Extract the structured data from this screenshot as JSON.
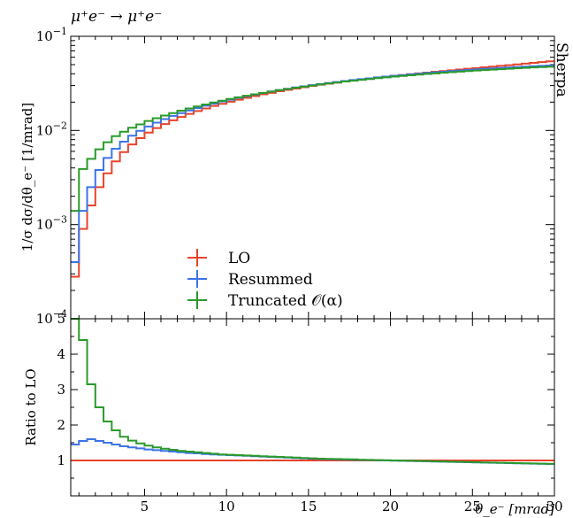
{
  "chart_data": [
    {
      "panel": "main",
      "type": "line",
      "drawstyle": "steps",
      "title": "μ⁺e⁻ → μ⁺e⁻",
      "watermark": "Sherpa",
      "ylabel": "1/σ dσ/dθ_e⁻ [1/mrad]",
      "xlabel": "",
      "xlim": [
        0.5,
        30
      ],
      "ylim": [
        0.0001,
        0.1
      ],
      "yscale": "log",
      "x_ticks": [
        5,
        10,
        15,
        20,
        25,
        30
      ],
      "y_ticks": [
        {
          "value": 0.0001,
          "base": "10",
          "exp": "−4"
        },
        {
          "value": 0.001,
          "base": "10",
          "exp": "−3"
        },
        {
          "value": 0.01,
          "base": "10",
          "exp": "−2"
        },
        {
          "value": 0.1,
          "base": "10",
          "exp": "−1"
        }
      ],
      "bin_edges": [
        0.5,
        1.0,
        1.5,
        2.0,
        2.5,
        3.0,
        3.5,
        4.0,
        4.5,
        5.0,
        5.5,
        6.0,
        6.5,
        7.0,
        7.5,
        8.0,
        8.5,
        9.0,
        9.5,
        10.0,
        10.5,
        11.0,
        11.5,
        12.0,
        12.5,
        13.0,
        13.5,
        14.0,
        14.5,
        15.0,
        15.5,
        16.0,
        16.5,
        17.0,
        17.5,
        18.0,
        18.5,
        19.0,
        19.5,
        20.0,
        20.5,
        21.0,
        21.5,
        22.0,
        22.5,
        23.0,
        23.5,
        24.0,
        24.5,
        25.0,
        25.5,
        26.0,
        26.5,
        27.0,
        27.5,
        28.0,
        28.5,
        29.0,
        29.5,
        30.0
      ],
      "legend": {
        "position": "lower-center"
      },
      "series": [
        {
          "name": "LO",
          "color": "#e8432b",
          "values": [
            0.00028,
            0.0009,
            0.0016,
            0.0025,
            0.0035,
            0.0047,
            0.0059,
            0.0071,
            0.0083,
            0.0095,
            0.0106,
            0.0117,
            0.0128,
            0.0139,
            0.015,
            0.0161,
            0.0171,
            0.0182,
            0.0192,
            0.0202,
            0.0212,
            0.0222,
            0.0232,
            0.0242,
            0.0251,
            0.0261,
            0.027,
            0.0279,
            0.0288,
            0.0297,
            0.0306,
            0.0314,
            0.0323,
            0.0331,
            0.034,
            0.0348,
            0.0356,
            0.0364,
            0.0372,
            0.038,
            0.0388,
            0.0396,
            0.0404,
            0.0412,
            0.042,
            0.0428,
            0.0436,
            0.0444,
            0.0452,
            0.046,
            0.0468,
            0.0476,
            0.0485,
            0.0494,
            0.0503,
            0.0512,
            0.0522,
            0.0532,
            0.0542
          ]
        },
        {
          "name": "Resummed",
          "color": "#3d74e6",
          "values": [
            0.0004,
            0.0014,
            0.0025,
            0.0038,
            0.0051,
            0.0064,
            0.0076,
            0.0088,
            0.0099,
            0.011,
            0.0121,
            0.0132,
            0.0143,
            0.0153,
            0.0163,
            0.0173,
            0.0183,
            0.0193,
            0.0203,
            0.0212,
            0.0222,
            0.0231,
            0.0241,
            0.025,
            0.0259,
            0.0268,
            0.0277,
            0.0286,
            0.0294,
            0.0303,
            0.0311,
            0.0319,
            0.0327,
            0.0335,
            0.0343,
            0.0351,
            0.0358,
            0.0366,
            0.0373,
            0.038,
            0.0387,
            0.0394,
            0.0401,
            0.0408,
            0.0414,
            0.0421,
            0.0427,
            0.0433,
            0.0439,
            0.0445,
            0.0451,
            0.0456,
            0.0461,
            0.0466,
            0.0471,
            0.0476,
            0.0481,
            0.0486,
            0.049
          ]
        },
        {
          "name": "Truncated 𝒪(α)",
          "color": "#2a9a2a",
          "values": [
            0.0014,
            0.0039,
            0.005,
            0.0063,
            0.0075,
            0.0087,
            0.0097,
            0.0107,
            0.0116,
            0.0126,
            0.0135,
            0.0144,
            0.0153,
            0.0162,
            0.0171,
            0.018,
            0.0189,
            0.0198,
            0.0207,
            0.0216,
            0.0225,
            0.0234,
            0.0242,
            0.0251,
            0.0259,
            0.0268,
            0.0276,
            0.0284,
            0.0292,
            0.03,
            0.0308,
            0.0316,
            0.0323,
            0.0331,
            0.0338,
            0.0345,
            0.0352,
            0.0359,
            0.0366,
            0.0373,
            0.0379,
            0.0386,
            0.0392,
            0.0398,
            0.0404,
            0.041,
            0.0416,
            0.0422,
            0.0427,
            0.0433,
            0.0438,
            0.0443,
            0.0448,
            0.0453,
            0.0458,
            0.0462,
            0.0467,
            0.0471,
            0.0475
          ]
        }
      ]
    },
    {
      "panel": "ratio",
      "type": "line",
      "drawstyle": "steps",
      "ylabel": "Ratio to LO",
      "xlabel": "θ_e⁻ [mrad]",
      "xlim": [
        0.5,
        30
      ],
      "ylim": [
        0,
        5
      ],
      "x_ticks": [
        5,
        10,
        15,
        20,
        25,
        30
      ],
      "y_ticks": [
        1,
        2,
        3,
        4,
        5
      ],
      "series": [
        {
          "name": "LO",
          "color": "#e8432b",
          "values": [
            1.0,
            1.0,
            1.0,
            1.0,
            1.0,
            1.0,
            1.0,
            1.0,
            1.0,
            1.0,
            1.0,
            1.0,
            1.0,
            1.0,
            1.0,
            1.0,
            1.0,
            1.0,
            1.0,
            1.0,
            1.0,
            1.0,
            1.0,
            1.0,
            1.0,
            1.0,
            1.0,
            1.0,
            1.0,
            1.0,
            1.0,
            1.0,
            1.0,
            1.0,
            1.0,
            1.0,
            1.0,
            1.0,
            1.0,
            1.0,
            1.0,
            1.0,
            1.0,
            1.0,
            1.0,
            1.0,
            1.0,
            1.0,
            1.0,
            1.0,
            1.0,
            1.0,
            1.0,
            1.0,
            1.0,
            1.0,
            1.0,
            1.0,
            1.0
          ]
        },
        {
          "name": "Resummed",
          "color": "#3d74e6",
          "values": [
            1.45,
            1.55,
            1.6,
            1.55,
            1.5,
            1.45,
            1.4,
            1.37,
            1.34,
            1.31,
            1.29,
            1.27,
            1.25,
            1.23,
            1.21,
            1.2,
            1.18,
            1.17,
            1.16,
            1.15,
            1.14,
            1.13,
            1.12,
            1.11,
            1.1,
            1.09,
            1.08,
            1.07,
            1.06,
            1.05,
            1.04,
            1.035,
            1.03,
            1.025,
            1.02,
            1.015,
            1.01,
            1.005,
            1.0,
            0.995,
            0.99,
            0.985,
            0.98,
            0.975,
            0.97,
            0.965,
            0.96,
            0.955,
            0.95,
            0.945,
            0.94,
            0.935,
            0.93,
            0.925,
            0.92,
            0.915,
            0.91,
            0.905,
            0.9
          ]
        },
        {
          "name": "Truncated 𝒪(α)",
          "color": "#2a9a2a",
          "values": [
            5.0,
            4.4,
            3.15,
            2.5,
            2.1,
            1.85,
            1.67,
            1.56,
            1.48,
            1.42,
            1.37,
            1.33,
            1.3,
            1.27,
            1.25,
            1.23,
            1.21,
            1.19,
            1.17,
            1.16,
            1.15,
            1.14,
            1.13,
            1.12,
            1.11,
            1.1,
            1.09,
            1.08,
            1.07,
            1.06,
            1.05,
            1.045,
            1.04,
            1.035,
            1.03,
            1.02,
            1.015,
            1.01,
            1.005,
            1.0,
            0.995,
            0.99,
            0.985,
            0.98,
            0.975,
            0.97,
            0.965,
            0.96,
            0.955,
            0.95,
            0.945,
            0.94,
            0.935,
            0.93,
            0.925,
            0.92,
            0.915,
            0.91,
            0.905
          ]
        }
      ]
    }
  ]
}
